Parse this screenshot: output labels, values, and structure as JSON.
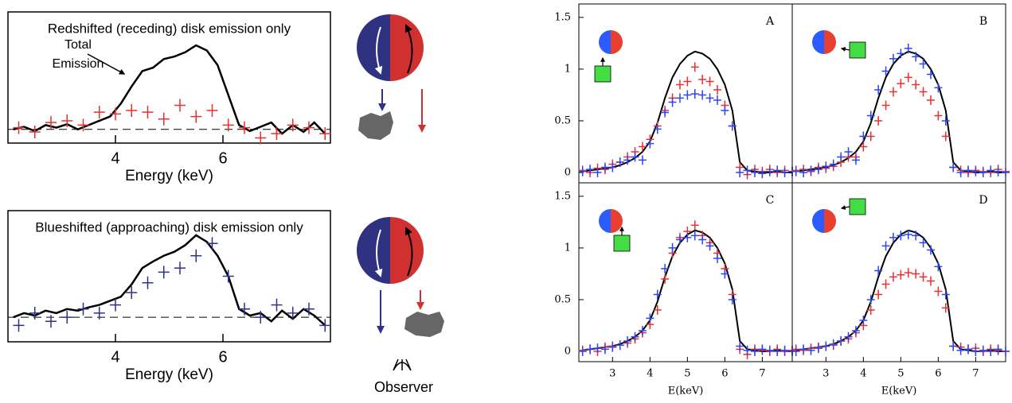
{
  "chart_data": [
    {
      "type": "line",
      "annotation": "Redshifted (receding) disk emission only",
      "total_label": [
        "Total",
        "Emission"
      ],
      "xlabel": "Energy (keV)",
      "xlim": [
        2,
        8
      ],
      "ylim": [
        -0.16,
        1.37
      ],
      "xticks": [
        4,
        6
      ],
      "reference_line": 0,
      "series": [
        {
          "type": "line",
          "color": "#000000",
          "x": [
            2.1,
            2.3,
            2.5,
            2.7,
            2.9,
            3.1,
            3.3,
            3.5,
            3.7,
            3.9,
            4.1,
            4.3,
            4.5,
            4.7,
            4.9,
            5.1,
            5.3,
            5.5,
            5.7,
            5.9,
            6.1,
            6.3,
            6.5,
            6.7,
            6.9,
            7.1,
            7.3,
            7.5,
            7.7,
            7.9
          ],
          "values": [
            0.0,
            0.03,
            -0.02,
            0.05,
            0.02,
            0.06,
            0.0,
            0.05,
            0.1,
            0.15,
            0.3,
            0.5,
            0.68,
            0.72,
            0.82,
            0.85,
            0.9,
            0.98,
            0.92,
            0.75,
            0.4,
            0.05,
            -0.02,
            0.03,
            0.08,
            -0.05,
            0.05,
            -0.03,
            0.08,
            -0.05
          ]
        },
        {
          "type": "scatter",
          "color": "#e03030",
          "x": [
            2.2,
            2.5,
            2.8,
            3.1,
            3.4,
            3.7,
            4.0,
            4.3,
            4.6,
            4.9,
            5.2,
            5.5,
            5.8,
            6.1,
            6.4,
            6.7,
            7.0,
            7.3,
            7.6,
            7.9
          ],
          "values": [
            0.02,
            -0.03,
            0.08,
            0.1,
            0.05,
            0.2,
            0.18,
            0.22,
            0.2,
            0.12,
            0.28,
            0.15,
            0.22,
            0.05,
            0.02,
            -0.1,
            -0.05,
            0.05,
            0.02,
            -0.05
          ]
        }
      ]
    },
    {
      "type": "line",
      "annotation": "Blueshifted (approaching) disk emission only",
      "xlabel": "Energy (keV)",
      "xlim": [
        2,
        8
      ],
      "ylim": [
        -0.3,
        1.3
      ],
      "xticks": [
        4,
        6
      ],
      "reference_line": 0,
      "series": [
        {
          "type": "line",
          "color": "#000000",
          "x": [
            2.1,
            2.3,
            2.5,
            2.7,
            2.9,
            3.1,
            3.3,
            3.5,
            3.7,
            3.9,
            4.1,
            4.3,
            4.5,
            4.7,
            4.9,
            5.1,
            5.3,
            5.5,
            5.7,
            5.9,
            6.1,
            6.3,
            6.5,
            6.7,
            6.9,
            7.1,
            7.3,
            7.5,
            7.7,
            7.9
          ],
          "values": [
            0.0,
            0.05,
            0.02,
            0.08,
            0.05,
            0.1,
            0.08,
            0.12,
            0.15,
            0.2,
            0.25,
            0.4,
            0.6,
            0.68,
            0.75,
            0.8,
            0.88,
            1.0,
            0.92,
            0.75,
            0.5,
            0.1,
            0.02,
            0.05,
            -0.05,
            0.08,
            -0.02,
            0.1,
            0.02,
            -0.1
          ]
        },
        {
          "type": "scatter",
          "color": "#303090",
          "x": [
            2.2,
            2.5,
            2.8,
            3.1,
            3.4,
            3.7,
            4.0,
            4.3,
            4.6,
            4.9,
            5.2,
            5.5,
            5.8,
            6.1,
            6.4,
            6.7,
            7.0,
            7.3,
            7.6,
            7.9
          ],
          "values": [
            -0.1,
            0.05,
            -0.05,
            0.0,
            0.1,
            0.05,
            0.15,
            0.3,
            0.42,
            0.55,
            0.6,
            0.75,
            0.9,
            0.5,
            0.1,
            0.0,
            0.15,
            0.05,
            0.1,
            -0.1
          ]
        }
      ]
    },
    {
      "type": "line",
      "label": "A",
      "xlim": [
        2.1,
        7.8
      ],
      "ylim": [
        -0.1,
        1.63
      ],
      "yticks": [
        0,
        0.5,
        1,
        1.5
      ],
      "x": [
        2.2,
        2.4,
        2.6,
        2.8,
        3.0,
        3.2,
        3.4,
        3.6,
        3.8,
        4.0,
        4.2,
        4.4,
        4.6,
        4.8,
        5.0,
        5.2,
        5.4,
        5.6,
        5.8,
        6.0,
        6.2,
        6.4,
        6.6,
        6.8,
        7.0,
        7.2,
        7.4,
        7.6,
        7.8
      ],
      "series": [
        {
          "type": "line",
          "color": "#000000",
          "values": [
            0.01,
            0.02,
            0.03,
            0.04,
            0.05,
            0.07,
            0.1,
            0.14,
            0.2,
            0.3,
            0.48,
            0.72,
            0.92,
            1.05,
            1.13,
            1.17,
            1.15,
            1.1,
            1.0,
            0.85,
            0.6,
            0.1,
            0.02,
            0.01,
            0.0,
            0.0,
            0.01,
            0.0,
            0.0
          ]
        },
        {
          "type": "scatter",
          "color": "#e83030",
          "values": [
            0.02,
            0.0,
            0.04,
            0.03,
            0.08,
            0.1,
            0.15,
            0.2,
            0.25,
            0.32,
            0.45,
            0.6,
            0.72,
            0.85,
            0.88,
            1.02,
            0.9,
            0.88,
            0.8,
            0.65,
            0.45,
            0.05,
            -0.02,
            0.03,
            0.01,
            0.03,
            0.0,
            0.02,
            0.01
          ]
        },
        {
          "type": "scatter",
          "color": "#2c46f0",
          "values": [
            0.01,
            0.03,
            0.0,
            0.05,
            0.05,
            0.1,
            0.12,
            0.15,
            0.12,
            0.28,
            0.42,
            0.58,
            0.68,
            0.72,
            0.75,
            0.76,
            0.75,
            0.72,
            0.7,
            0.6,
            0.45,
            0.0,
            0.02,
            0.0,
            -0.01,
            0.01,
            0.02,
            0.0,
            0.01
          ]
        }
      ]
    },
    {
      "type": "line",
      "label": "B",
      "xlim": [
        2.1,
        7.8
      ],
      "ylim": [
        -0.1,
        1.63
      ],
      "x": [
        2.2,
        2.4,
        2.6,
        2.8,
        3.0,
        3.2,
        3.4,
        3.6,
        3.8,
        4.0,
        4.2,
        4.4,
        4.6,
        4.8,
        5.0,
        5.2,
        5.4,
        5.6,
        5.8,
        6.0,
        6.2,
        6.4,
        6.6,
        6.8,
        7.0,
        7.2,
        7.4,
        7.6,
        7.8
      ],
      "series": [
        {
          "type": "line",
          "color": "#000000",
          "values": [
            0.01,
            0.02,
            0.03,
            0.04,
            0.05,
            0.07,
            0.1,
            0.14,
            0.2,
            0.3,
            0.48,
            0.72,
            0.92,
            1.05,
            1.13,
            1.17,
            1.15,
            1.1,
            1.0,
            0.85,
            0.6,
            0.1,
            0.02,
            0.01,
            0.0,
            0.0,
            0.01,
            0.0,
            0.0
          ]
        },
        {
          "type": "scatter",
          "color": "#e83030",
          "values": [
            0.02,
            0.03,
            0.01,
            0.05,
            0.04,
            0.06,
            0.1,
            0.15,
            0.15,
            0.25,
            0.35,
            0.5,
            0.65,
            0.78,
            0.86,
            0.92,
            0.85,
            0.78,
            0.7,
            0.55,
            0.35,
            0.05,
            0.02,
            0.0,
            0.02,
            0.01,
            0.0,
            0.03,
            0.01
          ]
        },
        {
          "type": "scatter",
          "color": "#2c46f0",
          "values": [
            0.01,
            0.0,
            0.02,
            0.03,
            0.06,
            0.08,
            0.15,
            0.2,
            0.12,
            0.35,
            0.55,
            0.8,
            0.98,
            1.1,
            1.15,
            1.2,
            1.12,
            1.05,
            0.95,
            0.82,
            0.5,
            0.05,
            0.0,
            0.02,
            0.01,
            0.0,
            0.02,
            0.01,
            0.0
          ]
        }
      ]
    },
    {
      "type": "line",
      "label": "C",
      "xlabel": "E(keV)",
      "xlim": [
        2.1,
        7.8
      ],
      "ylim": [
        -0.1,
        1.63
      ],
      "yticks": [
        0,
        0.5,
        1,
        1.5
      ],
      "xticks": [
        3,
        4,
        5,
        6,
        7
      ],
      "x": [
        2.2,
        2.4,
        2.6,
        2.8,
        3.0,
        3.2,
        3.4,
        3.6,
        3.8,
        4.0,
        4.2,
        4.4,
        4.6,
        4.8,
        5.0,
        5.2,
        5.4,
        5.6,
        5.8,
        6.0,
        6.2,
        6.4,
        6.6,
        6.8,
        7.0,
        7.2,
        7.4,
        7.6,
        7.8
      ],
      "series": [
        {
          "type": "line",
          "color": "#000000",
          "values": [
            0.01,
            0.02,
            0.03,
            0.04,
            0.05,
            0.07,
            0.1,
            0.14,
            0.2,
            0.3,
            0.48,
            0.72,
            0.92,
            1.05,
            1.13,
            1.17,
            1.15,
            1.1,
            1.0,
            0.85,
            0.6,
            0.1,
            0.02,
            0.01,
            0.0,
            0.0,
            0.01,
            0.0,
            0.0
          ]
        },
        {
          "type": "scatter",
          "color": "#e83030",
          "values": [
            0.01,
            0.02,
            0.0,
            0.04,
            0.05,
            0.06,
            0.08,
            0.12,
            0.18,
            0.26,
            0.4,
            0.7,
            0.95,
            1.1,
            1.16,
            1.22,
            1.12,
            1.05,
            0.95,
            0.8,
            0.55,
            0.02,
            -0.03,
            0.02,
            0.01,
            0.0,
            0.02,
            0.0,
            0.01
          ]
        },
        {
          "type": "scatter",
          "color": "#2c46f0",
          "values": [
            0.0,
            0.02,
            0.03,
            0.02,
            0.04,
            0.06,
            0.1,
            0.14,
            0.2,
            0.32,
            0.55,
            0.8,
            1.0,
            1.08,
            1.1,
            1.12,
            1.08,
            1.02,
            0.9,
            0.75,
            0.5,
            0.05,
            0.01,
            0.0,
            0.02,
            0.01,
            0.0,
            0.01,
            0.0
          ]
        }
      ]
    },
    {
      "type": "line",
      "label": "D",
      "xlabel": "E(keV)",
      "xlim": [
        2.1,
        7.8
      ],
      "ylim": [
        -0.1,
        1.63
      ],
      "xticks": [
        3,
        4,
        5,
        6,
        7
      ],
      "x": [
        2.2,
        2.4,
        2.6,
        2.8,
        3.0,
        3.2,
        3.4,
        3.6,
        3.8,
        4.0,
        4.2,
        4.4,
        4.6,
        4.8,
        5.0,
        5.2,
        5.4,
        5.6,
        5.8,
        6.0,
        6.2,
        6.4,
        6.6,
        6.8,
        7.0,
        7.2,
        7.4,
        7.6,
        7.8
      ],
      "series": [
        {
          "type": "line",
          "color": "#000000",
          "values": [
            0.01,
            0.02,
            0.03,
            0.04,
            0.05,
            0.07,
            0.1,
            0.14,
            0.2,
            0.3,
            0.48,
            0.72,
            0.92,
            1.05,
            1.13,
            1.17,
            1.15,
            1.1,
            1.0,
            0.85,
            0.6,
            0.1,
            0.02,
            0.01,
            0.0,
            0.0,
            0.01,
            0.0,
            0.0
          ]
        },
        {
          "type": "scatter",
          "color": "#e83030",
          "values": [
            0.02,
            0.01,
            0.03,
            0.04,
            0.05,
            0.06,
            0.1,
            0.12,
            0.18,
            0.25,
            0.4,
            0.55,
            0.65,
            0.72,
            0.74,
            0.76,
            0.75,
            0.72,
            0.68,
            0.58,
            0.42,
            0.05,
            0.04,
            0.02,
            0.03,
            0.0,
            0.02,
            0.01,
            0.0
          ]
        },
        {
          "type": "scatter",
          "color": "#2c46f0",
          "values": [
            0.0,
            0.02,
            0.01,
            0.03,
            0.05,
            0.07,
            0.1,
            0.14,
            0.2,
            0.3,
            0.5,
            0.78,
            1.02,
            1.1,
            1.12,
            1.13,
            1.12,
            1.05,
            0.98,
            0.82,
            0.55,
            0.05,
            0.01,
            0.02,
            0.0,
            0.01,
            0.0,
            0.02,
            0.0
          ]
        }
      ]
    }
  ],
  "diagram": {
    "observer": "Observer"
  }
}
